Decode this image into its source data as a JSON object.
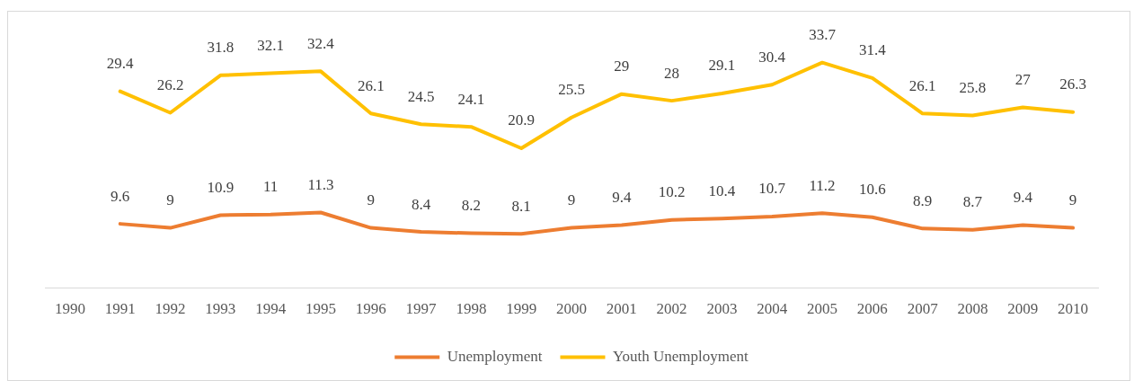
{
  "chart_data": {
    "type": "line",
    "categories": [
      "1990",
      "1991",
      "1992",
      "1993",
      "1994",
      "1995",
      "1996",
      "1997",
      "1998",
      "1999",
      "2000",
      "2001",
      "2002",
      "2003",
      "2004",
      "2005",
      "2006",
      "2007",
      "2008",
      "2009",
      "2010"
    ],
    "series": [
      {
        "name": "Unemployment",
        "color": "#ed7d31",
        "values": [
          null,
          9.6,
          9,
          10.9,
          11,
          11.3,
          9,
          8.4,
          8.2,
          8.1,
          9,
          9.4,
          10.2,
          10.4,
          10.7,
          11.2,
          10.6,
          8.9,
          8.7,
          9.4,
          9
        ]
      },
      {
        "name": "Youth Unemployment",
        "color": "#ffc000",
        "values": [
          null,
          29.4,
          26.2,
          31.8,
          32.1,
          32.4,
          26.1,
          24.5,
          24.1,
          20.9,
          25.5,
          29,
          28,
          29.1,
          30.4,
          33.7,
          31.4,
          26.1,
          25.8,
          27,
          26.3
        ]
      }
    ],
    "data_labels": true,
    "legend": "bottom",
    "grid": false,
    "marker": "none",
    "line_style": "solid"
  }
}
